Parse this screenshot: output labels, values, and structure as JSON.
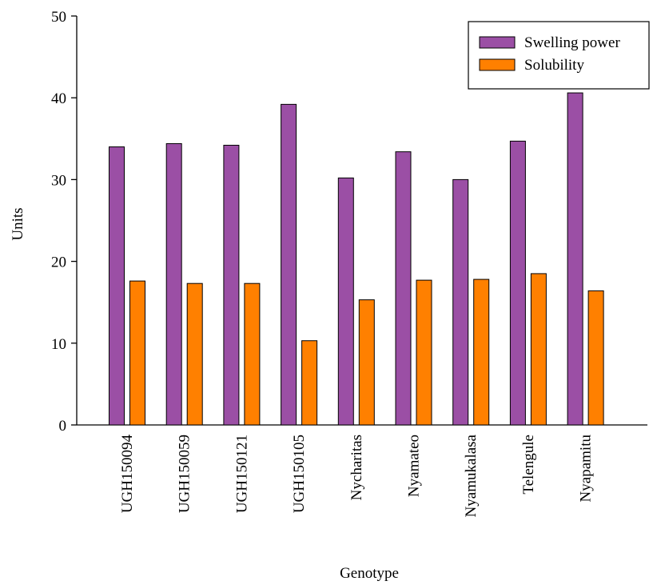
{
  "chart_data": {
    "type": "bar",
    "title": "",
    "xlabel": "Genotype",
    "ylabel": "Units",
    "ylim": [
      0,
      50
    ],
    "yticks": [
      0,
      10,
      20,
      30,
      40,
      50
    ],
    "grid": false,
    "legend_position": "top-right",
    "categories": [
      "UGH150094",
      "UGH150059",
      "UGH150121",
      "UGH150105",
      "Nycharitas",
      "Nyamateo",
      "Nyamukalasa",
      "Telengule",
      "Nyapamitu"
    ],
    "series": [
      {
        "name": "Swelling power",
        "color": "#9b4fa5",
        "values": [
          34.0,
          34.4,
          34.2,
          39.2,
          30.2,
          33.4,
          30.0,
          34.7,
          40.6
        ]
      },
      {
        "name": "Solubility",
        "color": "#ff8000",
        "values": [
          17.6,
          17.3,
          17.3,
          10.3,
          15.3,
          17.7,
          17.8,
          18.5,
          16.4
        ]
      }
    ]
  }
}
